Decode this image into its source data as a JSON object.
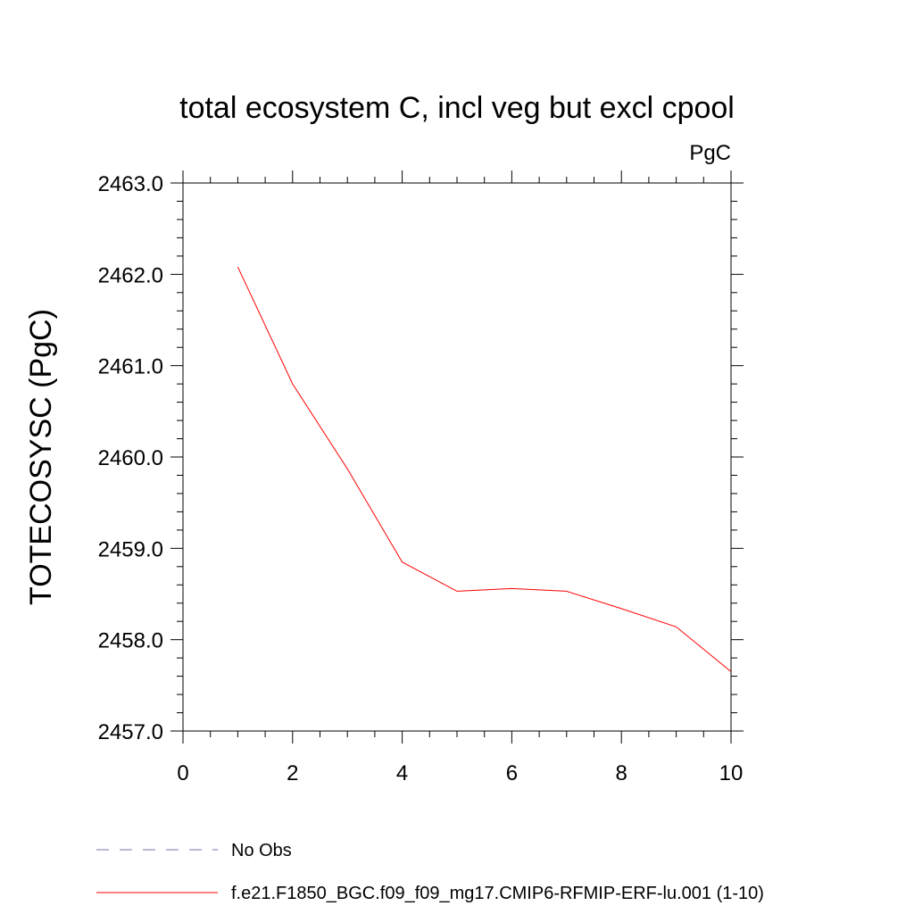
{
  "chart_data": {
    "type": "line",
    "title": "total ecosystem C, incl veg but excl cpool",
    "units_label": "PgC",
    "xlabel": "",
    "ylabel": "TOTECOSYSC  (PgC)",
    "xlim": [
      0,
      10
    ],
    "ylim": [
      2457.0,
      2463.0
    ],
    "x_ticks": [
      "0",
      "2",
      "4",
      "6",
      "8",
      "10"
    ],
    "x_tick_values": [
      0,
      2,
      4,
      6,
      8,
      10
    ],
    "y_ticks": [
      "2457.0",
      "2458.0",
      "2459.0",
      "2460.0",
      "2461.0",
      "2462.0",
      "2463.0"
    ],
    "y_tick_values": [
      2457.0,
      2458.0,
      2459.0,
      2460.0,
      2461.0,
      2462.0,
      2463.0
    ],
    "grid": false,
    "series": [
      {
        "name": "f.e21.F1850_BGC.f09_f09_mg17.CMIP6-RFMIP-ERF-lu.001 (1-10)",
        "color": "#ff0000",
        "style": "solid",
        "x": [
          1,
          2,
          3,
          4,
          5,
          6,
          7,
          8,
          9,
          10
        ],
        "values": [
          2462.08,
          2460.8,
          2459.87,
          2458.85,
          2458.53,
          2458.56,
          2458.53,
          2458.34,
          2458.14,
          2457.65
        ]
      }
    ],
    "legend": [
      {
        "label": "No Obs",
        "color": "#7b6fb0",
        "style": "dashed"
      },
      {
        "label": "f.e21.F1850_BGC.f09_f09_mg17.CMIP6-RFMIP-ERF-lu.001 (1-10)",
        "color": "#ff0000",
        "style": "solid"
      }
    ]
  }
}
